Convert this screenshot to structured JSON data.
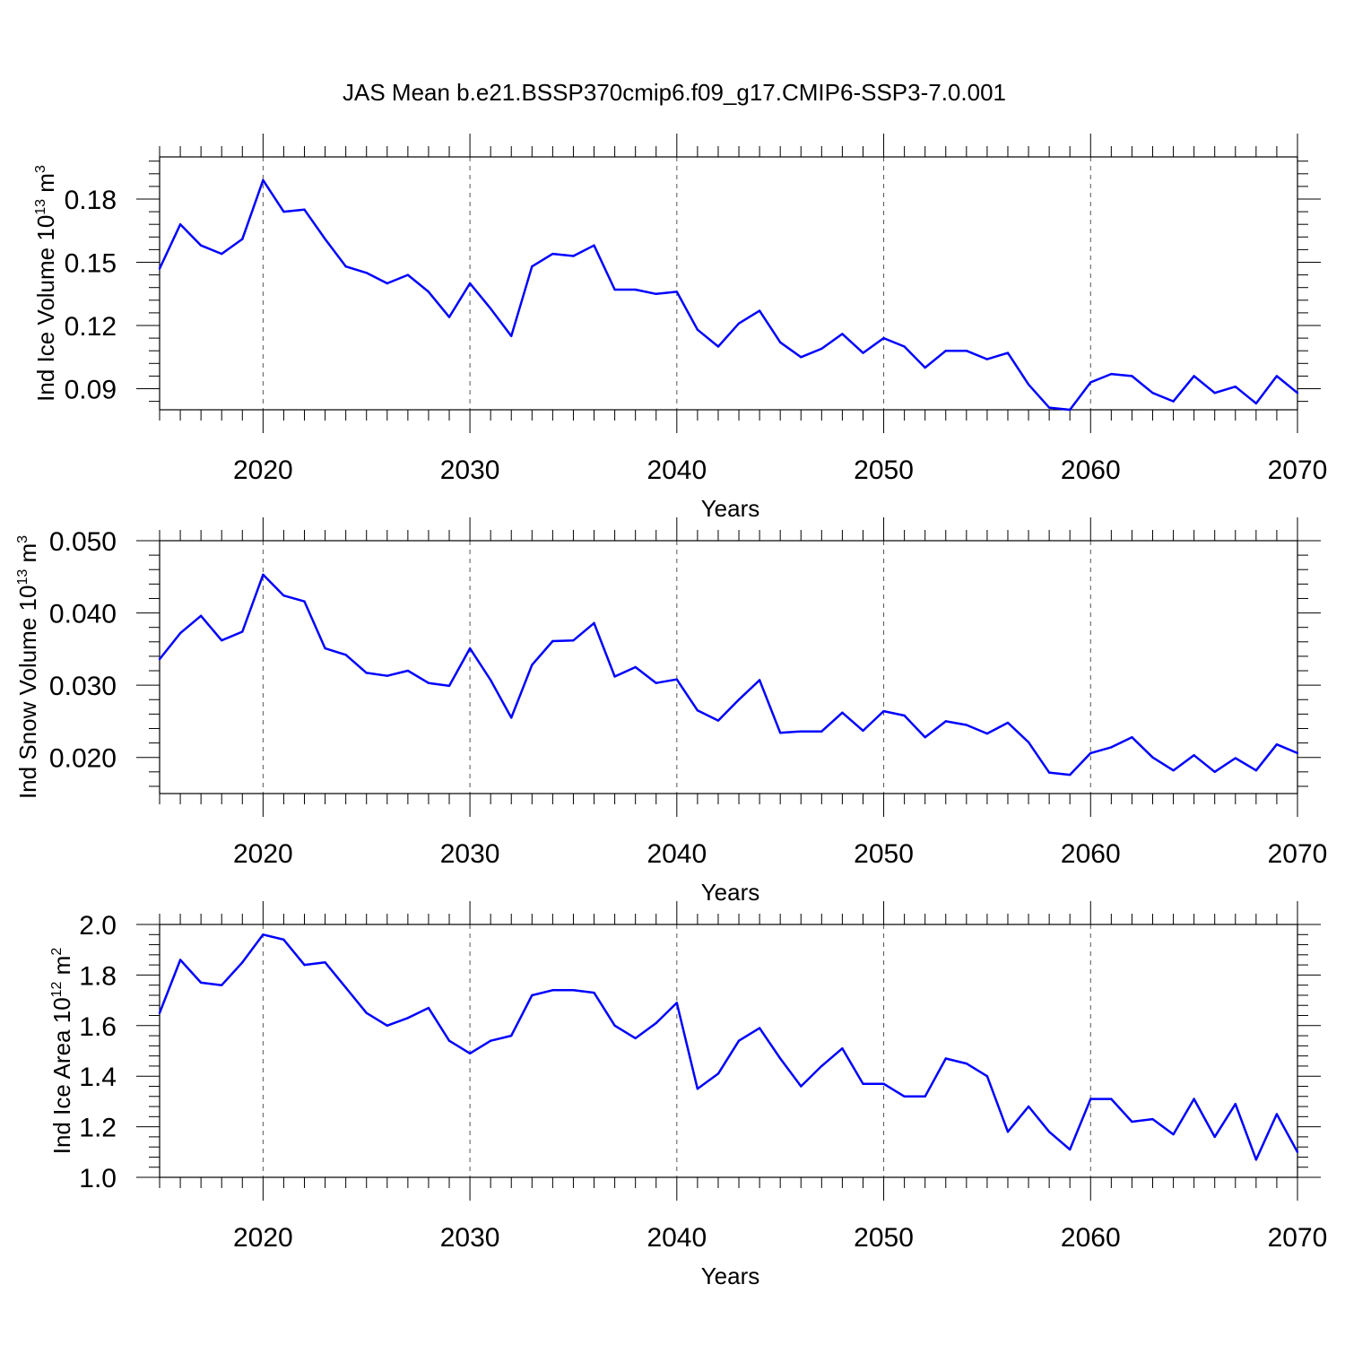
{
  "title": "JAS Mean b.e21.BSSP370cmip6.f09_g17.CMIP6-SSP3-7.0.001",
  "chart_data": [
    {
      "type": "line",
      "xlabel": "Years",
      "ylabel": {
        "main": "Ind Ice Volume 10",
        "sup": "13",
        "tail": " m",
        "sup2": "3"
      },
      "xlim": [
        2015,
        2070
      ],
      "ylim": [
        0.08,
        0.2
      ],
      "xticks": [
        "2020",
        "2030",
        "2040",
        "2050",
        "2060",
        "2070"
      ],
      "yticks": [
        "0.09",
        "0.12",
        "0.15",
        "0.18"
      ],
      "grid": "dashed vertical lines at 2020, 2030, 2040, 2050, 2060",
      "color": "#0000ff",
      "x": [
        2015,
        2016,
        2017,
        2018,
        2019,
        2020,
        2021,
        2022,
        2023,
        2024,
        2025,
        2026,
        2027,
        2028,
        2029,
        2030,
        2031,
        2032,
        2033,
        2034,
        2035,
        2036,
        2037,
        2038,
        2039,
        2040,
        2041,
        2042,
        2043,
        2044,
        2045,
        2046,
        2047,
        2048,
        2049,
        2050,
        2051,
        2052,
        2053,
        2054,
        2055,
        2056,
        2057,
        2058,
        2059,
        2060,
        2061,
        2062,
        2063,
        2064,
        2065,
        2066,
        2067,
        2068,
        2069,
        2070
      ],
      "values": [
        0.147,
        0.168,
        0.158,
        0.154,
        0.161,
        0.189,
        0.174,
        0.175,
        0.161,
        0.148,
        0.145,
        0.14,
        0.144,
        0.136,
        0.124,
        0.14,
        0.128,
        0.115,
        0.148,
        0.154,
        0.153,
        0.158,
        0.137,
        0.137,
        0.135,
        0.136,
        0.118,
        0.11,
        0.121,
        0.127,
        0.112,
        0.105,
        0.109,
        0.116,
        0.107,
        0.114,
        0.11,
        0.1,
        0.108,
        0.108,
        0.104,
        0.107,
        0.092,
        0.081,
        0.08,
        0.093,
        0.097,
        0.096,
        0.088,
        0.084,
        0.096,
        0.088,
        0.091,
        0.083,
        0.096,
        0.088
      ]
    },
    {
      "type": "line",
      "xlabel": "Years",
      "ylabel": {
        "main": "Ind Snow Volume 10",
        "sup": "13",
        "tail": " m",
        "sup2": "3"
      },
      "xlim": [
        2015,
        2070
      ],
      "ylim": [
        0.015,
        0.05
      ],
      "xticks": [
        "2020",
        "2030",
        "2040",
        "2050",
        "2060",
        "2070"
      ],
      "yticks": [
        "0.020",
        "0.030",
        "0.040",
        "0.050"
      ],
      "grid": "dashed vertical lines at 2020, 2030, 2040, 2050, 2060",
      "color": "#0000ff",
      "x": [
        2015,
        2016,
        2017,
        2018,
        2019,
        2020,
        2021,
        2022,
        2023,
        2024,
        2025,
        2026,
        2027,
        2028,
        2029,
        2030,
        2031,
        2032,
        2033,
        2034,
        2035,
        2036,
        2037,
        2038,
        2039,
        2040,
        2041,
        2042,
        2043,
        2044,
        2045,
        2046,
        2047,
        2048,
        2049,
        2050,
        2051,
        2052,
        2053,
        2054,
        2055,
        2056,
        2057,
        2058,
        2059,
        2060,
        2061,
        2062,
        2063,
        2064,
        2065,
        2066,
        2067,
        2068,
        2069,
        2070
      ],
      "values": [
        0.0336,
        0.0372,
        0.0396,
        0.0362,
        0.0374,
        0.0453,
        0.0424,
        0.0416,
        0.0351,
        0.0342,
        0.0317,
        0.0313,
        0.032,
        0.0303,
        0.0299,
        0.0351,
        0.0307,
        0.0255,
        0.0328,
        0.0361,
        0.0362,
        0.0386,
        0.0312,
        0.0325,
        0.0303,
        0.0308,
        0.0265,
        0.0251,
        0.028,
        0.0307,
        0.0234,
        0.0236,
        0.0236,
        0.0262,
        0.0237,
        0.0264,
        0.0258,
        0.0228,
        0.025,
        0.0245,
        0.0233,
        0.0248,
        0.0221,
        0.0179,
        0.0176,
        0.0206,
        0.0214,
        0.0228,
        0.02,
        0.0182,
        0.0203,
        0.018,
        0.0199,
        0.0182,
        0.0218,
        0.0206
      ]
    },
    {
      "type": "line",
      "xlabel": "Years",
      "ylabel": {
        "main": "Ind Ice Area 10",
        "sup": "12",
        "tail": " m",
        "sup2": "2"
      },
      "xlim": [
        2015,
        2070
      ],
      "ylim": [
        1.0,
        2.0
      ],
      "xticks": [
        "2020",
        "2030",
        "2040",
        "2050",
        "2060",
        "2070"
      ],
      "yticks": [
        "1.0",
        "1.2",
        "1.4",
        "1.6",
        "1.8",
        "2.0"
      ],
      "grid": "dashed vertical lines at 2020, 2030, 2040, 2050, 2060",
      "color": "#0000ff",
      "x": [
        2015,
        2016,
        2017,
        2018,
        2019,
        2020,
        2021,
        2022,
        2023,
        2024,
        2025,
        2026,
        2027,
        2028,
        2029,
        2030,
        2031,
        2032,
        2033,
        2034,
        2035,
        2036,
        2037,
        2038,
        2039,
        2040,
        2041,
        2042,
        2043,
        2044,
        2045,
        2046,
        2047,
        2048,
        2049,
        2050,
        2051,
        2052,
        2053,
        2054,
        2055,
        2056,
        2057,
        2058,
        2059,
        2060,
        2061,
        2062,
        2063,
        2064,
        2065,
        2066,
        2067,
        2068,
        2069,
        2070
      ],
      "values": [
        1.65,
        1.86,
        1.77,
        1.76,
        1.85,
        1.96,
        1.94,
        1.84,
        1.85,
        1.75,
        1.65,
        1.6,
        1.63,
        1.67,
        1.54,
        1.49,
        1.54,
        1.56,
        1.72,
        1.74,
        1.74,
        1.73,
        1.6,
        1.55,
        1.61,
        1.69,
        1.35,
        1.41,
        1.54,
        1.59,
        1.47,
        1.36,
        1.44,
        1.51,
        1.37,
        1.37,
        1.32,
        1.32,
        1.47,
        1.45,
        1.4,
        1.18,
        1.28,
        1.18,
        1.11,
        1.31,
        1.31,
        1.22,
        1.23,
        1.17,
        1.31,
        1.16,
        1.29,
        1.07,
        1.25,
        1.1
      ]
    }
  ]
}
